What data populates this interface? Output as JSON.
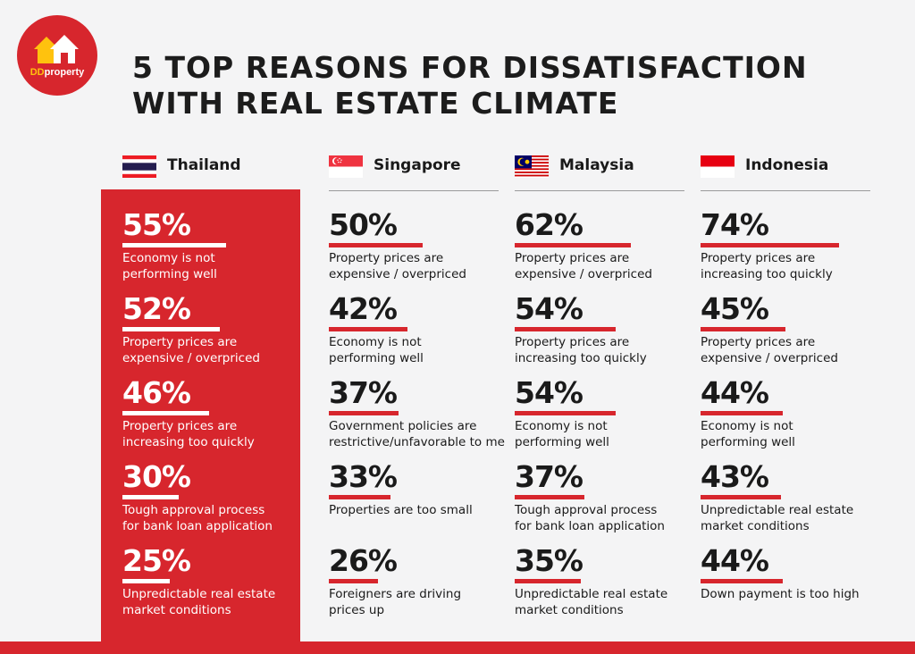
{
  "brand": {
    "logo_dd": "DD",
    "logo_property": "property",
    "color": "#d7262d",
    "accent": "#ffc20e"
  },
  "title_line1": "5 TOP REASONS FOR DISSATISFACTION",
  "title_line2": "WITH REAL ESTATE CLIMATE",
  "chart_data": {
    "type": "bar",
    "title": "5 TOP REASONS FOR DISSATISFACTION WITH REAL ESTATE CLIMATE",
    "unit": "%",
    "max": 100,
    "highlight_country": "Thailand",
    "countries": [
      {
        "name": "Thailand",
        "flag": "thailand-flag",
        "items": [
          {
            "label": "55%",
            "value": 55,
            "line1": "Economy is not",
            "line2": "performing well"
          },
          {
            "label": "52%",
            "value": 52,
            "line1": "Property prices are",
            "line2": "expensive / overpriced"
          },
          {
            "label": "46%",
            "value": 46,
            "line1": "Property prices are",
            "line2": "increasing too quickly"
          },
          {
            "label": "30%",
            "value": 30,
            "line1": "Tough approval process",
            "line2": "for bank loan application"
          },
          {
            "label": "25%",
            "value": 25,
            "line1": "Unpredictable real estate",
            "line2": "market conditions"
          }
        ]
      },
      {
        "name": "Singapore",
        "flag": "singapore-flag",
        "items": [
          {
            "label": "50%",
            "value": 50,
            "line1": "Property prices are",
            "line2": "expensive / overpriced"
          },
          {
            "label": "42%",
            "value": 42,
            "line1": "Economy is not",
            "line2": "performing well"
          },
          {
            "label": "37%",
            "value": 37,
            "line1": "Government policies are",
            "line2": "restrictive/unfavorable to me"
          },
          {
            "label": "33%",
            "value": 33,
            "line1": "Properties are too small",
            "line2": ""
          },
          {
            "label": "26%",
            "value": 26,
            "line1": "Foreigners are driving",
            "line2": "prices up"
          }
        ]
      },
      {
        "name": "Malaysia",
        "flag": "malaysia-flag",
        "items": [
          {
            "label": "62%",
            "value": 62,
            "line1": "Property prices are",
            "line2": "expensive / overpriced"
          },
          {
            "label": "54%",
            "value": 54,
            "line1": "Property prices are",
            "line2": "increasing too quickly"
          },
          {
            "label": "54%",
            "value": 54,
            "line1": "Economy is not",
            "line2": "performing well"
          },
          {
            "label": "37%",
            "value": 37,
            "line1": "Tough approval process",
            "line2": "for bank loan application"
          },
          {
            "label": "35%",
            "value": 35,
            "line1": "Unpredictable real estate",
            "line2": "market conditions"
          }
        ]
      },
      {
        "name": "Indonesia",
        "flag": "indonesia-flag",
        "items": [
          {
            "label": "74%",
            "value": 74,
            "line1": "Property prices are",
            "line2": "increasing too quickly"
          },
          {
            "label": "45%",
            "value": 45,
            "line1": "Property prices are",
            "line2": "expensive / overpriced"
          },
          {
            "label": "44%",
            "value": 44,
            "line1": "Economy is not",
            "line2": "performing well"
          },
          {
            "label": "43%",
            "value": 43,
            "line1": "Unpredictable real estate",
            "line2": "market conditions"
          },
          {
            "label": "44%",
            "value": 44,
            "line1": "Down payment is too high",
            "line2": ""
          }
        ]
      }
    ]
  }
}
